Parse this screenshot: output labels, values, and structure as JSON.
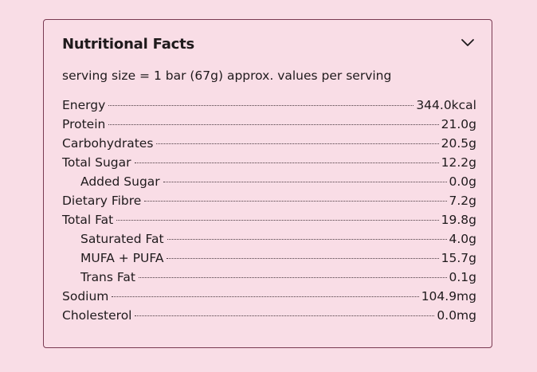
{
  "panel": {
    "title": "Nutritional Facts",
    "toggle_icon": "chevron-down-icon",
    "serving": "serving size = 1 bar (67g) approx. values per serving"
  },
  "nutrients": [
    {
      "label": "Energy",
      "value": "344.0kcal",
      "indent": false
    },
    {
      "label": "Protein",
      "value": "21.0g",
      "indent": false
    },
    {
      "label": "Carbohydrates",
      "value": "20.5g",
      "indent": false
    },
    {
      "label": "Total Sugar",
      "value": "12.2g",
      "indent": false
    },
    {
      "label": "Added Sugar",
      "value": "0.0g",
      "indent": true
    },
    {
      "label": "Dietary Fibre",
      "value": "7.2g",
      "indent": false
    },
    {
      "label": "Total Fat",
      "value": "19.8g",
      "indent": false
    },
    {
      "label": "Saturated Fat",
      "value": "4.0g",
      "indent": true
    },
    {
      "label": "MUFA + PUFA",
      "value": "15.7g",
      "indent": true
    },
    {
      "label": "Trans Fat",
      "value": "0.1g",
      "indent": true
    },
    {
      "label": "Sodium",
      "value": "104.9mg",
      "indent": false
    },
    {
      "label": "Cholesterol",
      "value": "0.0mg",
      "indent": false
    }
  ],
  "colors": {
    "background": "#f9dde6",
    "border": "#7a3a52",
    "text": "#1f1a1c"
  }
}
